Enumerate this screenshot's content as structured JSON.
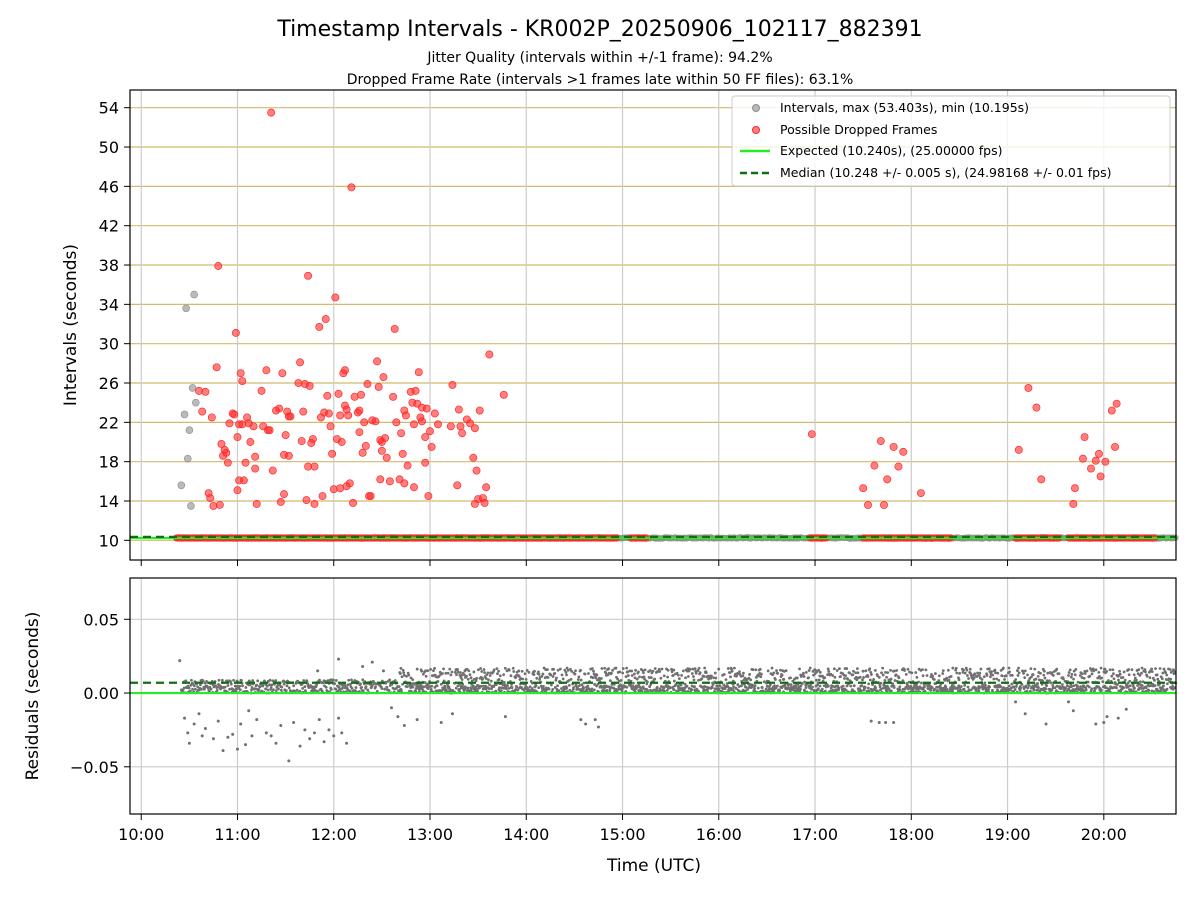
{
  "figure": {
    "title": "Timestamp Intervals - KR002P_20250906_102117_882391",
    "subtitle_1": "Jitter Quality (intervals within +/-1 frame): 94.2%",
    "subtitle_2": "Dropped Frame Rate (intervals >1 frames late within 50 FF files): 63.1%"
  },
  "colors": {
    "intervals": "#8c8c8c",
    "dropped": "#ff2a2a",
    "expected": "#22ee22",
    "median": "#107010",
    "ygrid_top": "#d2bb6e",
    "grid": "#cccccc",
    "residuals": "#707070"
  },
  "chart_data": [
    {
      "type": "scatter",
      "ylabel": "Intervals (seconds)",
      "xlim": [
        "09:53",
        "20:45"
      ],
      "ylim": [
        8,
        55.8
      ],
      "y_ticks": [
        10,
        14,
        18,
        22,
        26,
        30,
        34,
        38,
        42,
        46,
        50,
        54
      ],
      "grid": "horizontal lines at y ticks, vertical lines at x ticks",
      "legend_position": "top-right",
      "legend": [
        "Intervals, max (53.403s), min (10.195s)",
        "Possible Dropped Frames",
        "Expected (10.240s), (25.00000 fps)",
        "Median (10.248 +/- 0.005 s), (24.98168 +/- 0.01 fps)"
      ],
      "expected_line": 10.24,
      "median_line": 10.248,
      "intervals_outliers": [
        [
          "10:25",
          15.6
        ],
        [
          "10:27",
          22.8
        ],
        [
          "10:28",
          33.6
        ],
        [
          "10:29",
          18.3
        ],
        [
          "10:30",
          21.2
        ],
        [
          "10:31",
          13.5
        ],
        [
          "10:32",
          25.5
        ],
        [
          "10:33",
          35
        ],
        [
          "10:34",
          24
        ]
      ],
      "dropped_points": [
        [
          "10:36",
          25.2
        ],
        [
          "10:38",
          23.1
        ],
        [
          "10:40",
          25.1
        ],
        [
          "10:42",
          14.8
        ],
        [
          "10:43",
          14.3
        ],
        [
          "10:44",
          22.5
        ],
        [
          "10:45",
          13.5
        ],
        [
          "10:47",
          27.6
        ],
        [
          "10:48",
          37.9
        ],
        [
          "10:49",
          13.6
        ],
        [
          "10:50",
          19.8
        ],
        [
          "10:51",
          18.6
        ],
        [
          "10:52",
          19.2
        ],
        [
          "10:53",
          18.9
        ],
        [
          "10:54",
          17.9
        ],
        [
          "10:55",
          21.9
        ],
        [
          "10:57",
          22.9
        ],
        [
          "10:58",
          22.8
        ],
        [
          "10:59",
          31.1
        ],
        [
          "11:00",
          20.5
        ],
        [
          "11:00",
          15.1
        ],
        [
          "11:01",
          21.8
        ],
        [
          "11:01",
          16.1
        ],
        [
          "11:02",
          27
        ],
        [
          "11:03",
          26.2
        ],
        [
          "11:03",
          21.8
        ],
        [
          "11:04",
          16.1
        ],
        [
          "11:05",
          17.9
        ],
        [
          "11:06",
          22.5
        ],
        [
          "11:07",
          21.9
        ],
        [
          "11:08",
          20
        ],
        [
          "11:10",
          21.6
        ],
        [
          "11:11",
          17.3
        ],
        [
          "11:11",
          18.5
        ],
        [
          "11:12",
          13.7
        ],
        [
          "11:15",
          25.2
        ],
        [
          "11:16",
          21.6
        ],
        [
          "11:18",
          27.3
        ],
        [
          "11:19",
          21.2
        ],
        [
          "11:20",
          21.2
        ],
        [
          "11:21",
          53.5
        ],
        [
          "11:22",
          17.1
        ],
        [
          "11:24",
          23.2
        ],
        [
          "11:26",
          23.4
        ],
        [
          "11:27",
          13.9
        ],
        [
          "11:28",
          27
        ],
        [
          "11:29",
          14.7
        ],
        [
          "11:29",
          18.7
        ],
        [
          "11:30",
          20.7
        ],
        [
          "11:31",
          23.1
        ],
        [
          "11:32",
          18.6
        ],
        [
          "11:32",
          22.6
        ],
        [
          "11:33",
          22.6
        ],
        [
          "11:38",
          26
        ],
        [
          "11:39",
          28.1
        ],
        [
          "11:40",
          20.1
        ],
        [
          "11:41",
          23.1
        ],
        [
          "11:42",
          25.9
        ],
        [
          "11:43",
          14.1
        ],
        [
          "11:44",
          36.9
        ],
        [
          "11:44",
          17.5
        ],
        [
          "11:45",
          25.7
        ],
        [
          "11:46",
          19.9
        ],
        [
          "11:47",
          20.3
        ],
        [
          "11:48",
          13.7
        ],
        [
          "11:48",
          17.5
        ],
        [
          "11:51",
          31.7
        ],
        [
          "11:52",
          22.5
        ],
        [
          "11:53",
          14.5
        ],
        [
          "11:54",
          23
        ],
        [
          "11:55",
          32.5
        ],
        [
          "11:56",
          24.7
        ],
        [
          "11:57",
          22.9
        ],
        [
          "11:58",
          21.6
        ],
        [
          "11:59",
          18.8
        ],
        [
          "12:00",
          15.2
        ],
        [
          "12:01",
          34.7
        ],
        [
          "12:02",
          20.3
        ],
        [
          "12:03",
          24.9
        ],
        [
          "12:04",
          15.3
        ],
        [
          "12:04",
          22.7
        ],
        [
          "12:05",
          20
        ],
        [
          "12:06",
          27
        ],
        [
          "12:07",
          27.3
        ],
        [
          "12:07",
          23.7
        ],
        [
          "12:08",
          15.5
        ],
        [
          "12:08",
          23.3
        ],
        [
          "12:09",
          22.7
        ],
        [
          "12:10",
          15.8
        ],
        [
          "12:11",
          45.9
        ],
        [
          "12:12",
          13.8
        ],
        [
          "12:13",
          24.6
        ],
        [
          "12:15",
          23
        ],
        [
          "12:16",
          23.2
        ],
        [
          "12:16",
          21
        ],
        [
          "12:17",
          24.8
        ],
        [
          "12:18",
          18.9
        ],
        [
          "12:19",
          22
        ],
        [
          "12:20",
          19.6
        ],
        [
          "12:21",
          25.9
        ],
        [
          "12:22",
          14.5
        ],
        [
          "12:23",
          14.5
        ],
        [
          "12:24",
          22.2
        ],
        [
          "12:26",
          22.1
        ],
        [
          "12:27",
          28.2
        ],
        [
          "12:28",
          25.6
        ],
        [
          "12:29",
          16.2
        ],
        [
          "12:29",
          20.2
        ],
        [
          "12:30",
          20
        ],
        [
          "12:30",
          19.1
        ],
        [
          "12:31",
          26.6
        ],
        [
          "12:32",
          20.4
        ],
        [
          "12:33",
          18.4
        ],
        [
          "12:35",
          16
        ],
        [
          "12:37",
          24.6
        ],
        [
          "12:38",
          31.5
        ],
        [
          "12:39",
          22
        ],
        [
          "12:41",
          16.2
        ],
        [
          "12:42",
          20.9
        ],
        [
          "12:43",
          18.8
        ],
        [
          "12:44",
          15.8
        ],
        [
          "12:44",
          23.2
        ],
        [
          "12:45",
          22.7
        ],
        [
          "12:46",
          17.6
        ],
        [
          "12:48",
          25.1
        ],
        [
          "12:49",
          24
        ],
        [
          "12:50",
          21.8
        ],
        [
          "12:50",
          15.4
        ],
        [
          "12:51",
          25.2
        ],
        [
          "12:52",
          23.9
        ],
        [
          "12:53",
          27.1
        ],
        [
          "12:54",
          22.5
        ],
        [
          "12:55",
          23.5
        ],
        [
          "12:55",
          22.1
        ],
        [
          "12:57",
          20.5
        ],
        [
          "12:57",
          17.9
        ],
        [
          "12:58",
          23.4
        ],
        [
          "12:59",
          14.5
        ],
        [
          "13:00",
          21.1
        ],
        [
          "13:01",
          19.5
        ],
        [
          "13:03",
          22.9
        ],
        [
          "13:05",
          21.8
        ],
        [
          "13:13",
          21.6
        ],
        [
          "13:14",
          25.8
        ],
        [
          "13:17",
          15.6
        ],
        [
          "13:18",
          23.3
        ],
        [
          "13:19",
          21.6
        ],
        [
          "13:20",
          20.9
        ],
        [
          "13:23",
          22.3
        ],
        [
          "13:25",
          21.9
        ],
        [
          "13:27",
          18.4
        ],
        [
          "13:28",
          13.7
        ],
        [
          "13:28",
          21.4
        ],
        [
          "13:29",
          17.1
        ],
        [
          "13:30",
          14.2
        ],
        [
          "13:31",
          23.2
        ],
        [
          "13:33",
          14.3
        ],
        [
          "13:34",
          13.8
        ],
        [
          "13:35",
          15.4
        ],
        [
          "13:37",
          28.9
        ],
        [
          "13:46",
          24.8
        ],
        [
          "16:58",
          20.8
        ],
        [
          "17:30",
          15.3
        ],
        [
          "17:33",
          13.6
        ],
        [
          "17:37",
          17.6
        ],
        [
          "17:41",
          20.1
        ],
        [
          "17:43",
          13.6
        ],
        [
          "17:45",
          16.2
        ],
        [
          "17:49",
          19.5
        ],
        [
          "17:52",
          17.5
        ],
        [
          "17:55",
          19
        ],
        [
          "18:06",
          14.8
        ],
        [
          "19:07",
          19.2
        ],
        [
          "19:13",
          25.5
        ],
        [
          "19:18",
          23.5
        ],
        [
          "19:21",
          16.2
        ],
        [
          "19:41",
          13.7
        ],
        [
          "19:42",
          15.3
        ],
        [
          "19:47",
          18.3
        ],
        [
          "19:48",
          20.5
        ],
        [
          "19:52",
          17.3
        ],
        [
          "19:55",
          18.1
        ],
        [
          "19:57",
          18.8
        ],
        [
          "19:58",
          16.5
        ],
        [
          "20:01",
          18
        ],
        [
          "20:05",
          23.2
        ],
        [
          "20:07",
          19.5
        ],
        [
          "20:08",
          23.9
        ]
      ],
      "dropped_baseline_segments": [
        [
          "10:22",
          "14:57"
        ],
        [
          "15:05",
          "15:15"
        ],
        [
          "16:57",
          "17:07"
        ],
        [
          "17:30",
          "18:25"
        ],
        [
          "19:05",
          "19:33"
        ],
        [
          "19:38",
          "20:32"
        ]
      ],
      "dropped_baseline_value": 10.24
    },
    {
      "type": "scatter",
      "ylabel": "Residuals (seconds)",
      "xlabel": "Time (UTC)",
      "xlim": [
        "09:53",
        "20:45"
      ],
      "ylim": [
        -0.082,
        0.078
      ],
      "y_ticks": [
        -0.05,
        0.0,
        0.05
      ],
      "y_tick_labels": [
        "−0.05",
        "0.00",
        "0.05"
      ],
      "x_ticks": [
        "10:00",
        "11:00",
        "12:00",
        "13:00",
        "14:00",
        "15:00",
        "16:00",
        "17:00",
        "18:00",
        "19:00",
        "20:00"
      ],
      "expected_line": 0.0,
      "median_line": 0.007,
      "residual_band": [
        0.0,
        0.017
      ],
      "residual_outliers": [
        [
          "10:24",
          0.022
        ],
        [
          "10:27",
          -0.017
        ],
        [
          "10:29",
          -0.027
        ],
        [
          "10:30",
          -0.034
        ],
        [
          "10:33",
          -0.021
        ],
        [
          "10:36",
          -0.014
        ],
        [
          "10:38",
          -0.029
        ],
        [
          "10:40",
          -0.024
        ],
        [
          "10:45",
          -0.031
        ],
        [
          "10:48",
          -0.019
        ],
        [
          "10:51",
          -0.039
        ],
        [
          "10:54",
          -0.03
        ],
        [
          "10:57",
          -0.028
        ],
        [
          "11:00",
          -0.038
        ],
        [
          "11:02",
          -0.021
        ],
        [
          "11:05",
          -0.035
        ],
        [
          "11:07",
          -0.012
        ],
        [
          "11:09",
          -0.029
        ],
        [
          "11:12",
          -0.018
        ],
        [
          "11:18",
          -0.027
        ],
        [
          "11:21",
          -0.029
        ],
        [
          "11:24",
          -0.034
        ],
        [
          "11:27",
          -0.022
        ],
        [
          "11:32",
          -0.046
        ],
        [
          "11:35",
          -0.02
        ],
        [
          "11:39",
          -0.036
        ],
        [
          "11:42",
          -0.025
        ],
        [
          "11:45",
          -0.031
        ],
        [
          "11:48",
          -0.027
        ],
        [
          "11:51",
          -0.018
        ],
        [
          "11:54",
          -0.033
        ],
        [
          "11:57",
          -0.025
        ],
        [
          "12:00",
          -0.029
        ],
        [
          "12:03",
          -0.017
        ],
        [
          "12:05",
          -0.027
        ],
        [
          "12:08",
          -0.034
        ],
        [
          "11:50",
          0.015
        ],
        [
          "12:03",
          0.023
        ],
        [
          "12:18",
          0.018
        ],
        [
          "12:24",
          0.021
        ],
        [
          "12:31",
          0.015
        ],
        [
          "12:36",
          -0.01
        ],
        [
          "12:40",
          -0.016
        ],
        [
          "12:44",
          -0.022
        ],
        [
          "12:52",
          -0.018
        ],
        [
          "13:07",
          -0.02
        ],
        [
          "13:14",
          -0.014
        ],
        [
          "13:47",
          -0.016
        ],
        [
          "14:34",
          -0.018
        ],
        [
          "14:37",
          -0.021
        ],
        [
          "14:43",
          -0.018
        ],
        [
          "14:45",
          -0.023
        ],
        [
          "17:35",
          -0.019
        ],
        [
          "17:40",
          -0.02
        ],
        [
          "17:44",
          -0.02
        ],
        [
          "17:49",
          -0.02
        ],
        [
          "19:05",
          -0.006
        ],
        [
          "19:11",
          -0.014
        ],
        [
          "19:24",
          -0.021
        ],
        [
          "19:38",
          -0.006
        ],
        [
          "19:41",
          -0.012
        ],
        [
          "19:55",
          -0.021
        ],
        [
          "20:00",
          -0.02
        ],
        [
          "20:02",
          -0.016
        ],
        [
          "20:09",
          -0.017
        ],
        [
          "20:14",
          -0.011
        ]
      ]
    }
  ]
}
